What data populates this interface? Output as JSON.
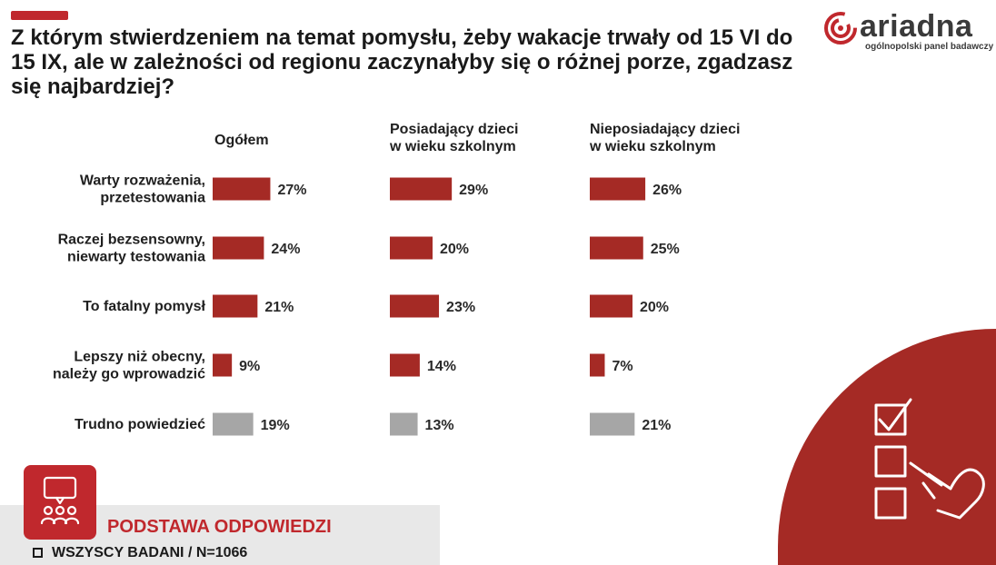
{
  "title": "Z którym stwierdzeniem na temat pomysłu, żeby wakacje trwały od 15 VI do 15 IX, ale w zależności od regionu zaczynałyby się o różnej porze, zgadzasz się najbardziej?",
  "logo": {
    "name": "ariadna",
    "tagline": "ogólnopolski panel badawczy"
  },
  "footer": {
    "title": "PODSTAWA ODPOWIEDZI",
    "base": "WSZYSCY BADANI  / N=1066"
  },
  "colors": {
    "accent": "#c0282d",
    "bar": "#a52a25",
    "bar_neutral": "#a6a6a6"
  },
  "chart_data": {
    "type": "bar",
    "orientation": "horizontal",
    "categories": [
      [
        "Warty rozważenia,",
        "przetestowania"
      ],
      [
        "Raczej bezsensowny,",
        "niewarty testowania"
      ],
      [
        "To fatalny pomysł"
      ],
      [
        "Lepszy niż obecny,",
        "należy go wprowadzić"
      ],
      [
        "Trudno powiedzieć"
      ]
    ],
    "series": [
      {
        "name": "Ogółem",
        "header": [
          "Ogółem"
        ],
        "values": [
          27,
          24,
          21,
          9,
          19
        ],
        "labels": [
          "27%",
          "24%",
          "21%",
          "9%",
          "19%"
        ]
      },
      {
        "name": "Posiadający dzieci w wieku szkolnym",
        "header": [
          "Posiadający dzieci",
          "w wieku szkolnym"
        ],
        "values": [
          29,
          20,
          23,
          14,
          13
        ],
        "labels": [
          "29%",
          "20%",
          "23%",
          "14%",
          "13%"
        ]
      },
      {
        "name": "Nieposiadający dzieci w wieku szkolnym",
        "header": [
          "Nieposiadający dzieci",
          "w wieku szkolnym"
        ],
        "values": [
          26,
          25,
          20,
          7,
          21
        ],
        "labels": [
          "26%",
          "25%",
          "20%",
          "7%",
          "21%"
        ]
      }
    ],
    "neutral_category_index": 4,
    "unit": "%"
  }
}
